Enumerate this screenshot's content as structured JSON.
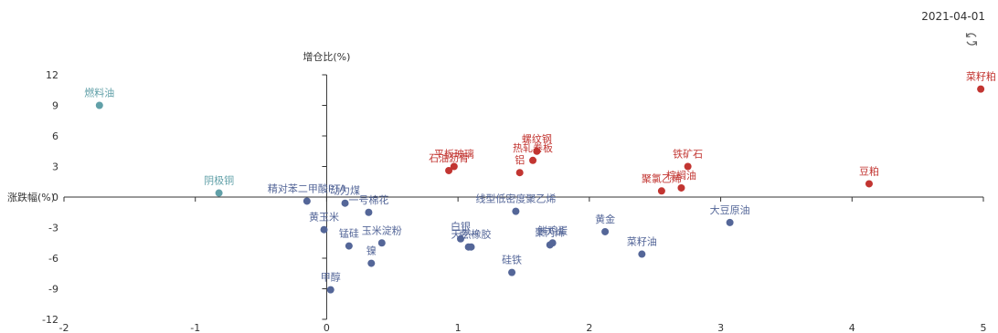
{
  "date_label": "2021-04-01",
  "refresh_icon": "refresh-icon",
  "colors": {
    "up": "#c23531",
    "down": "#546698",
    "neutral": "#61a0a8",
    "axis": "#333333"
  },
  "chart_data": {
    "type": "scatter",
    "xlabel": "增仓比(%)",
    "ylabel": "涨跌幅(%)",
    "xlim": [
      -2,
      5
    ],
    "ylim": [
      -12,
      12
    ],
    "xticks": [
      -2,
      -1,
      0,
      1,
      2,
      3,
      4,
      5
    ],
    "yticks": [
      -12,
      -9,
      -6,
      -3,
      0,
      3,
      6,
      9,
      12
    ],
    "points": [
      {
        "name": "燃料油",
        "x": -1.73,
        "y": 9.0,
        "group": "neutral"
      },
      {
        "name": "阴极铜",
        "x": -0.82,
        "y": 0.4,
        "group": "neutral"
      },
      {
        "name": "菜籽粕",
        "x": 4.98,
        "y": 10.6,
        "group": "up"
      },
      {
        "name": "铁矿石",
        "x": 2.75,
        "y": 3.0,
        "group": "up"
      },
      {
        "name": "棕榈油",
        "x": 2.7,
        "y": 0.9,
        "group": "up"
      },
      {
        "name": "聚氯乙烯",
        "x": 2.55,
        "y": 0.6,
        "group": "up"
      },
      {
        "name": "豆粕",
        "x": 4.13,
        "y": 1.3,
        "group": "up"
      },
      {
        "name": "螺纹钢",
        "x": 1.6,
        "y": 4.5,
        "group": "up"
      },
      {
        "name": "热轧卷板",
        "x": 1.57,
        "y": 3.6,
        "group": "up"
      },
      {
        "name": "铝",
        "x": 1.47,
        "y": 2.4,
        "group": "up"
      },
      {
        "name": "平板玻璃",
        "x": 0.97,
        "y": 3.0,
        "group": "up"
      },
      {
        "name": "石油沥青",
        "x": 0.93,
        "y": 2.6,
        "group": "up"
      },
      {
        "name": "精对苯二甲酸PTA",
        "x": -0.15,
        "y": -0.4,
        "group": "down"
      },
      {
        "name": "动力煤",
        "x": 0.14,
        "y": -0.6,
        "group": "down"
      },
      {
        "name": "一号棉花",
        "x": 0.32,
        "y": -1.5,
        "group": "down"
      },
      {
        "name": "线型低密度聚乙烯",
        "x": 1.44,
        "y": -1.4,
        "group": "down"
      },
      {
        "name": "大豆原油",
        "x": 3.07,
        "y": -2.5,
        "group": "down"
      },
      {
        "name": "黄玉米",
        "x": -0.02,
        "y": -3.2,
        "group": "down"
      },
      {
        "name": "锰硅",
        "x": 0.17,
        "y": -4.8,
        "group": "down"
      },
      {
        "name": "玉米淀粉",
        "x": 0.42,
        "y": -4.5,
        "group": "down"
      },
      {
        "name": "镍",
        "x": 0.34,
        "y": -6.5,
        "group": "down"
      },
      {
        "name": "甲醇",
        "x": 0.03,
        "y": -9.1,
        "group": "down"
      },
      {
        "name": "白银",
        "x": 1.02,
        "y": -4.1,
        "group": "down"
      },
      {
        "name": "天然橡胶",
        "x": 1.1,
        "y": -4.9,
        "group": "down"
      },
      {
        "name": "豆一",
        "x": 1.08,
        "y": -4.9,
        "group": "down"
      },
      {
        "name": "硅铁",
        "x": 1.41,
        "y": -7.4,
        "group": "down"
      },
      {
        "name": "鲜鸡蛋",
        "x": 1.72,
        "y": -4.5,
        "group": "down"
      },
      {
        "name": "聚丙烯",
        "x": 1.7,
        "y": -4.7,
        "group": "down"
      },
      {
        "name": "黄金",
        "x": 2.12,
        "y": -3.4,
        "group": "down"
      },
      {
        "name": "菜籽油",
        "x": 2.4,
        "y": -5.6,
        "group": "down"
      }
    ]
  }
}
